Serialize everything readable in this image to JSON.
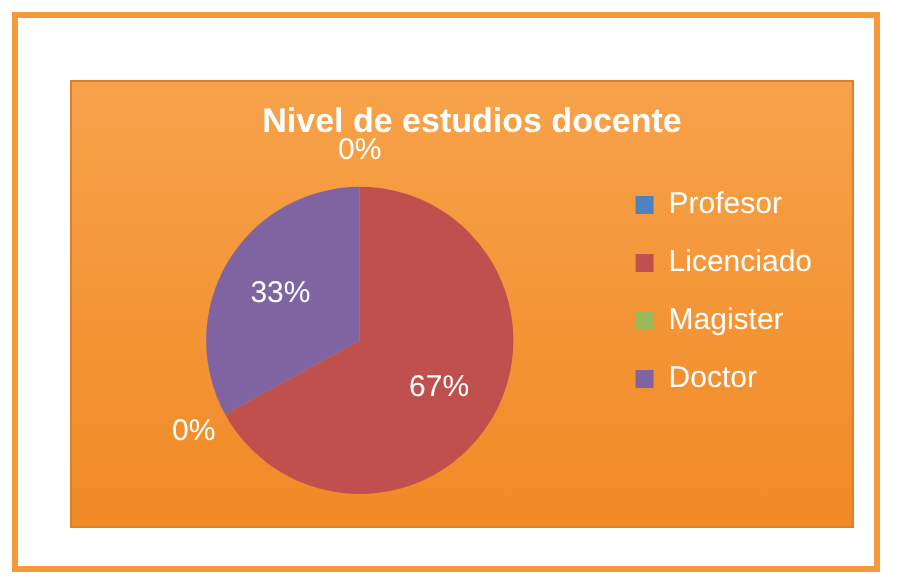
{
  "chart_data": {
    "type": "pie",
    "title": "Nivel de estudios docente",
    "categories": [
      "Profesor",
      "Licenciado",
      "Magister",
      "Doctor"
    ],
    "values": [
      0,
      67,
      0,
      33
    ],
    "colors": [
      "#4f81bd",
      "#c0504d",
      "#9bbb59",
      "#8064a2"
    ],
    "value_labels": [
      "0%",
      "67%",
      "0%",
      "33%"
    ],
    "legend": "right"
  }
}
